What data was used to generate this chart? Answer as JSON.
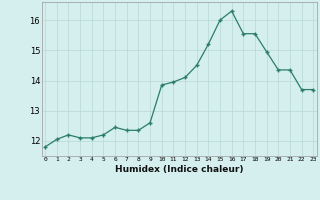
{
  "x": [
    0,
    1,
    2,
    3,
    4,
    5,
    6,
    7,
    8,
    9,
    10,
    11,
    12,
    13,
    14,
    15,
    16,
    17,
    18,
    19,
    20,
    21,
    22,
    23
  ],
  "y": [
    11.8,
    12.05,
    12.2,
    12.1,
    12.1,
    12.2,
    12.45,
    12.35,
    12.35,
    12.6,
    13.85,
    13.95,
    14.1,
    14.5,
    15.2,
    16.0,
    16.3,
    15.55,
    15.55,
    14.95,
    14.35,
    14.35,
    13.7,
    13.7
  ],
  "xlabel": "Humidex (Indice chaleur)",
  "line_color": "#2a7d6b",
  "marker_color": "#2a7d6b",
  "bg_color": "#d5eeee",
  "grid_color": "#b8d8d8",
  "ylim": [
    11.5,
    16.6
  ],
  "yticks": [
    12,
    13,
    14,
    15,
    16
  ],
  "xticks": [
    0,
    1,
    2,
    3,
    4,
    5,
    6,
    7,
    8,
    9,
    10,
    11,
    12,
    13,
    14,
    15,
    16,
    17,
    18,
    19,
    20,
    21,
    22,
    23
  ],
  "xlim": [
    -0.3,
    23.3
  ]
}
